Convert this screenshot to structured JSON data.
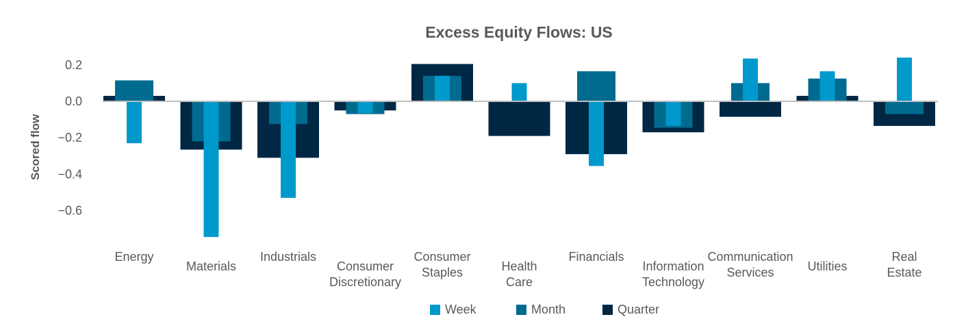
{
  "chart_data": {
    "type": "bar",
    "title": "Excess Equity Flows:  US",
    "xlabel": "",
    "ylabel": "Scored flow",
    "ylim": [
      -0.75,
      0.25
    ],
    "yticks": [
      0.2,
      0.0,
      -0.2,
      -0.4,
      -0.6
    ],
    "ytick_labels": [
      "0.2",
      "0.0",
      "−0.2",
      "−0.4",
      "−0.6"
    ],
    "categories": [
      [
        "Energy"
      ],
      [
        "Materials"
      ],
      [
        "Industrials"
      ],
      [
        "Consumer",
        "Discretionary"
      ],
      [
        "Consumer",
        "Staples"
      ],
      [
        "Health",
        "Care"
      ],
      [
        "Financials"
      ],
      [
        "Information",
        "Technology"
      ],
      [
        "Communication",
        "Services"
      ],
      [
        "Utilities"
      ],
      [
        "Real",
        "Estate"
      ]
    ],
    "series": [
      {
        "name": "Quarter",
        "color": "#002744",
        "values": [
          0.03,
          -0.265,
          -0.31,
          -0.05,
          0.205,
          -0.19,
          -0.29,
          -0.17,
          -0.085,
          0.03,
          -0.135
        ]
      },
      {
        "name": "Month",
        "color": "#006b8f",
        "values": [
          0.115,
          -0.22,
          -0.125,
          -0.07,
          0.14,
          0.0,
          0.165,
          -0.145,
          0.1,
          0.125,
          -0.07
        ]
      },
      {
        "name": "Week",
        "color": "#0099cc",
        "values": [
          -0.23,
          -0.745,
          -0.53,
          -0.065,
          0.14,
          0.1,
          -0.355,
          -0.135,
          0.235,
          0.165,
          0.24
        ]
      }
    ],
    "legend": {
      "position": "bottom-center",
      "entries": [
        {
          "label": "Week",
          "color": "#0099cc"
        },
        {
          "label": "Month",
          "color": "#006b8f"
        },
        {
          "label": "Quarter",
          "color": "#002744"
        }
      ]
    },
    "grid": false
  }
}
